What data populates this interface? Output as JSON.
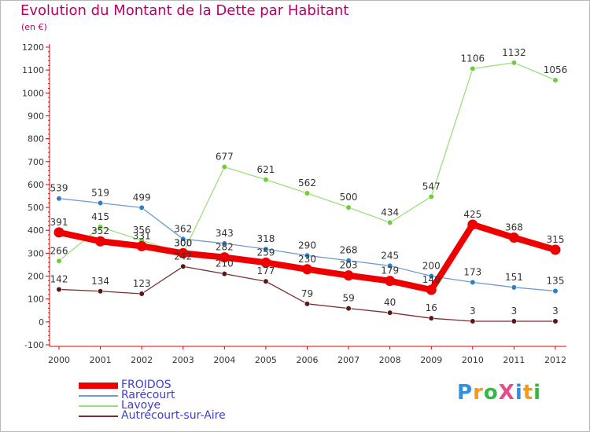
{
  "title": "Evolution du Montant de la Dette par Habitant",
  "subtitle": "(en €)",
  "brand": {
    "text": "ProXiti",
    "letter_colors": [
      "#2f8fe0",
      "#f39a1e",
      "#3ab44a",
      "#e84b8a",
      "#2f8fe0",
      "#f39a1e",
      "#3ab44a"
    ]
  },
  "chart_data": {
    "type": "line",
    "x": [
      "2000",
      "2001",
      "2002",
      "2003",
      "2004",
      "2005",
      "2006",
      "2007",
      "2008",
      "2009",
      "2010",
      "2011",
      "2012"
    ],
    "ylim": [
      -100,
      1200
    ],
    "yticks": [
      -100,
      0,
      100,
      200,
      300,
      400,
      500,
      600,
      700,
      800,
      900,
      1000,
      1100,
      1200
    ],
    "grid": false,
    "legend_position": "bottom-left",
    "series": [
      {
        "name": "FROIDOS",
        "color": "#ee0000",
        "marker_color": "#ee0000",
        "emphasis": true,
        "values": [
          391,
          352,
          331,
          300,
          282,
          259,
          230,
          203,
          179,
          140,
          425,
          368,
          315
        ]
      },
      {
        "name": "Rarécourt",
        "color": "#6a9bd2",
        "marker_color": "#2e7fc4",
        "emphasis": false,
        "values": [
          539,
          519,
          499,
          362,
          343,
          318,
          290,
          268,
          245,
          200,
          173,
          151,
          135
        ]
      },
      {
        "name": "Lavoye",
        "color": "#99e07a",
        "marker_color": "#70cc3a",
        "emphasis": false,
        "values": [
          266,
          415,
          356,
          300,
          677,
          621,
          562,
          500,
          434,
          547,
          1106,
          1132,
          1056
        ]
      },
      {
        "name": "Autrécourt-sur-Aire",
        "color": "#7a2e2e",
        "marker_color": "#5e1515",
        "emphasis": false,
        "values": [
          142,
          134,
          123,
          242,
          210,
          177,
          79,
          59,
          40,
          16,
          3,
          3,
          3
        ]
      }
    ]
  }
}
